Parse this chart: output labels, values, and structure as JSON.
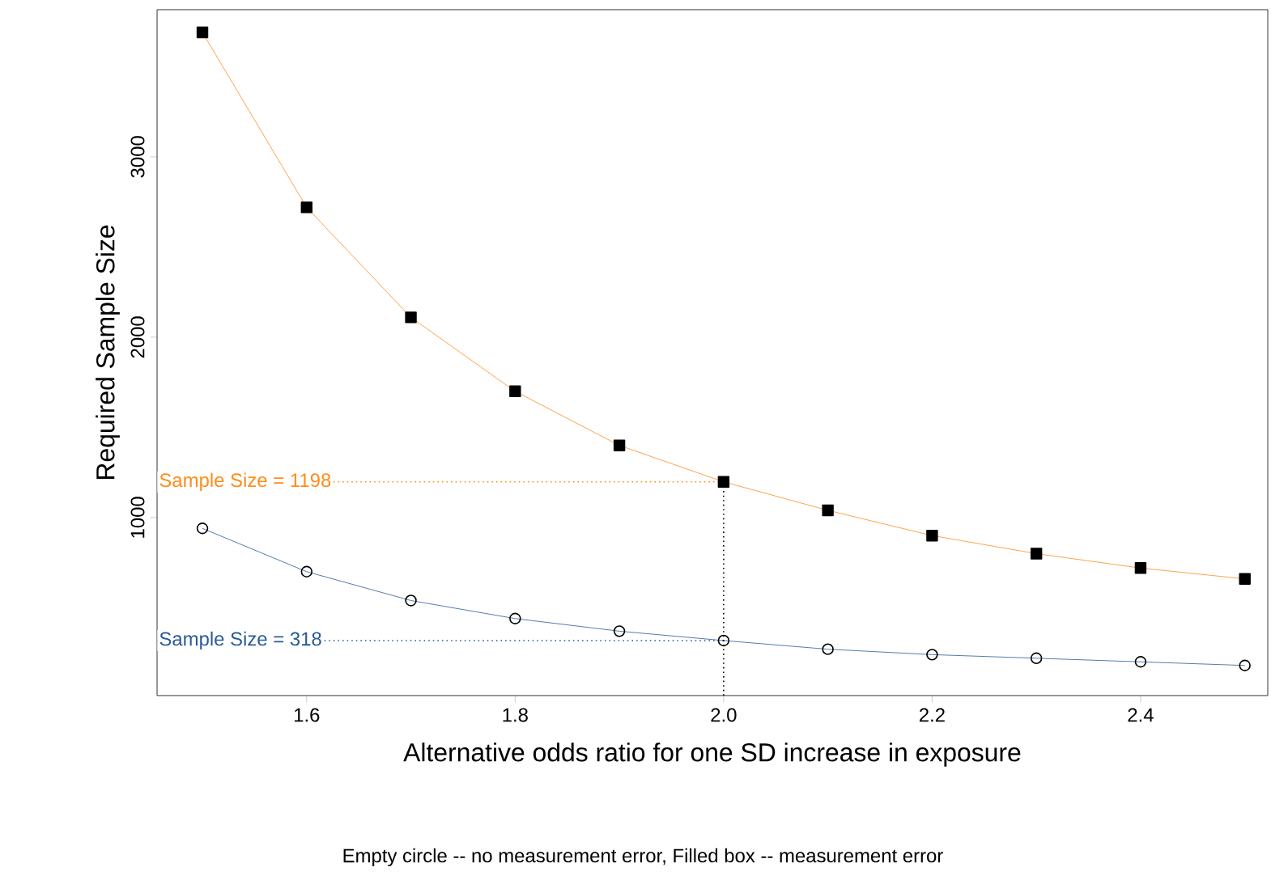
{
  "chart_data": {
    "type": "line",
    "xlabel": "Alternative odds ratio for one SD increase in exposure",
    "ylabel": "Required Sample Size",
    "annotations": [
      "Empty circle -- no measurement error, Filled box -- measurement error"
    ],
    "x": [
      1.5,
      1.6,
      1.7,
      1.8,
      1.9,
      2.0,
      2.1,
      2.2,
      2.3,
      2.4,
      2.5
    ],
    "series": [
      {
        "color": "#ff8c1a",
        "marker": "square",
        "values": [
          3690,
          2720,
          2110,
          1700,
          1400,
          1198,
          1040,
          900,
          800,
          720,
          660
        ]
      },
      {
        "color": "#2a5b96",
        "marker": "circle",
        "values": [
          940,
          700,
          540,
          440,
          370,
          318,
          270,
          240,
          220,
          200,
          180
        ]
      }
    ],
    "ref_lines": [
      {
        "axis": "y",
        "value": 1198,
        "label": "Sample Size = 1198",
        "color": "#ff8c1a",
        "line_style": "dotted"
      },
      {
        "axis": "y",
        "value": 318,
        "label": "Sample Size = 318",
        "color": "#2a5b96",
        "line_style": "dotted"
      },
      {
        "axis": "x",
        "value": 2.0,
        "color": "#000000",
        "line_style": "dotted"
      }
    ],
    "xlim": [
      1.4565,
      2.522
    ],
    "ylim": [
      13,
      3816
    ],
    "xticks": [
      1.6,
      1.8,
      {
        "value": 2,
        "label": "2.0"
      },
      2.2,
      2.4
    ],
    "yticks": [
      1000,
      2000,
      3000
    ],
    "grid": false
  }
}
